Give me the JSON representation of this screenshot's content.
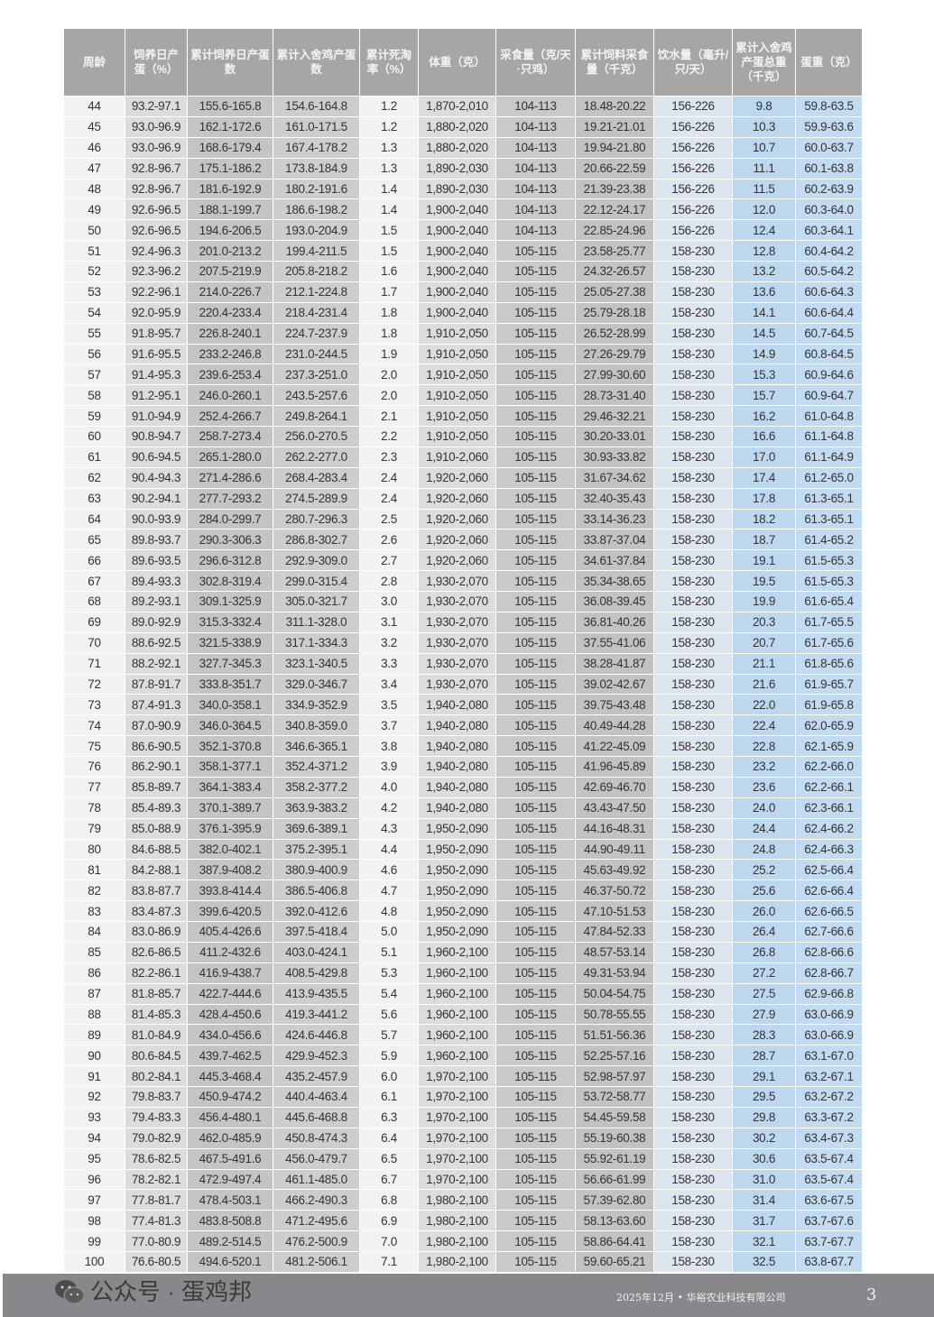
{
  "table": {
    "headers": [
      "周龄",
      "饲养日产蛋（%）",
      "累计饲养日产蛋数",
      "累计入舍鸡产蛋数",
      "累计死淘率（%）",
      "体重（克）",
      "采食量（克/天·只鸡）",
      "累计饲料采食量（千克）",
      "饮水量（毫升/只/天）",
      "累计入舍鸡产蛋总重（千克）",
      "蛋重（克）"
    ],
    "rows": [
      [
        "44",
        "93.2-97.1",
        "155.6-165.8",
        "154.6-164.8",
        "1.2",
        "1,870-2,010",
        "104-113",
        "18.48-20.22",
        "156-226",
        "9.8",
        "59.8-63.5"
      ],
      [
        "45",
        "93.0-96.9",
        "162.1-172.6",
        "161.0-171.5",
        "1.2",
        "1,880-2,020",
        "104-113",
        "19.21-21.01",
        "156-226",
        "10.3",
        "59.9-63.6"
      ],
      [
        "46",
        "93.0-96.9",
        "168.6-179.4",
        "167.4-178.2",
        "1.3",
        "1,880-2,020",
        "104-113",
        "19.94-21.80",
        "156-226",
        "10.7",
        "60.0-63.7"
      ],
      [
        "47",
        "92.8-96.7",
        "175.1-186.2",
        "173.8-184.9",
        "1.3",
        "1,890-2,030",
        "104-113",
        "20.66-22.59",
        "156-226",
        "11.1",
        "60.1-63.8"
      ],
      [
        "48",
        "92.8-96.7",
        "181.6-192.9",
        "180.2-191.6",
        "1.4",
        "1,890-2,030",
        "104-113",
        "21.39-23.38",
        "156-226",
        "11.5",
        "60.2-63.9"
      ],
      [
        "49",
        "92.6-96.5",
        "188.1-199.7",
        "186.6-198.2",
        "1.4",
        "1,900-2,040",
        "104-113",
        "22.12-24.17",
        "156-226",
        "12.0",
        "60.3-64.0"
      ],
      [
        "50",
        "92.6-96.5",
        "194.6-206.5",
        "193.0-204.9",
        "1.5",
        "1,900-2,040",
        "104-113",
        "22.85-24.96",
        "156-226",
        "12.4",
        "60.3-64.1"
      ],
      [
        "51",
        "92.4-96.3",
        "201.0-213.2",
        "199.4-211.5",
        "1.5",
        "1,900-2,040",
        "105-115",
        "23.58-25.77",
        "158-230",
        "12.8",
        "60.4-64.2"
      ],
      [
        "52",
        "92.3-96.2",
        "207.5-219.9",
        "205.8-218.2",
        "1.6",
        "1,900-2,040",
        "105-115",
        "24.32-26.57",
        "158-230",
        "13.2",
        "60.5-64.2"
      ],
      [
        "53",
        "92.2-96.1",
        "214.0-226.7",
        "212.1-224.8",
        "1.7",
        "1,900-2,040",
        "105-115",
        "25.05-27.38",
        "158-230",
        "13.6",
        "60.6-64.3"
      ],
      [
        "54",
        "92.0-95.9",
        "220.4-233.4",
        "218.4-231.4",
        "1.8",
        "1,900-2,040",
        "105-115",
        "25.79-28.18",
        "158-230",
        "14.1",
        "60.6-64.4"
      ],
      [
        "55",
        "91.8-95.7",
        "226.8-240.1",
        "224.7-237.9",
        "1.8",
        "1,910-2,050",
        "105-115",
        "26.52-28.99",
        "158-230",
        "14.5",
        "60.7-64.5"
      ],
      [
        "56",
        "91.6-95.5",
        "233.2-246.8",
        "231.0-244.5",
        "1.9",
        "1,910-2,050",
        "105-115",
        "27.26-29.79",
        "158-230",
        "14.9",
        "60.8-64.5"
      ],
      [
        "57",
        "91.4-95.3",
        "239.6-253.4",
        "237.3-251.0",
        "2.0",
        "1,910-2,050",
        "105-115",
        "27.99-30.60",
        "158-230",
        "15.3",
        "60.9-64.6"
      ],
      [
        "58",
        "91.2-95.1",
        "246.0-260.1",
        "243.5-257.6",
        "2.0",
        "1,910-2,050",
        "105-115",
        "28.73-31.40",
        "158-230",
        "15.7",
        "60.9-64.7"
      ],
      [
        "59",
        "91.0-94.9",
        "252.4-266.7",
        "249.8-264.1",
        "2.1",
        "1,910-2,050",
        "105-115",
        "29.46-32.21",
        "158-230",
        "16.2",
        "61.0-64.8"
      ],
      [
        "60",
        "90.8-94.7",
        "258.7-273.4",
        "256.0-270.5",
        "2.2",
        "1,910-2,050",
        "105-115",
        "30.20-33.01",
        "158-230",
        "16.6",
        "61.1-64.8"
      ],
      [
        "61",
        "90.6-94.5",
        "265.1-280.0",
        "262.2-277.0",
        "2.3",
        "1,910-2,060",
        "105-115",
        "30.93-33.82",
        "158-230",
        "17.0",
        "61.1-64.9"
      ],
      [
        "62",
        "90.4-94.3",
        "271.4-286.6",
        "268.4-283.4",
        "2.4",
        "1,920-2,060",
        "105-115",
        "31.67-34.62",
        "158-230",
        "17.4",
        "61.2-65.0"
      ],
      [
        "63",
        "90.2-94.1",
        "277.7-293.2",
        "274.5-289.9",
        "2.4",
        "1,920-2,060",
        "105-115",
        "32.40-35.43",
        "158-230",
        "17.8",
        "61.3-65.1"
      ],
      [
        "64",
        "90.0-93.9",
        "284.0-299.7",
        "280.7-296.3",
        "2.5",
        "1,920-2,060",
        "105-115",
        "33.14-36.23",
        "158-230",
        "18.2",
        "61.3-65.1"
      ],
      [
        "65",
        "89.8-93.7",
        "290.3-306.3",
        "286.8-302.7",
        "2.6",
        "1,920-2,060",
        "105-115",
        "33.87-37.04",
        "158-230",
        "18.7",
        "61.4-65.2"
      ],
      [
        "66",
        "89.6-93.5",
        "296.6-312.8",
        "292.9-309.0",
        "2.7",
        "1,920-2,060",
        "105-115",
        "34.61-37.84",
        "158-230",
        "19.1",
        "61.5-65.3"
      ],
      [
        "67",
        "89.4-93.3",
        "302.8-319.4",
        "299.0-315.4",
        "2.8",
        "1,930-2,070",
        "105-115",
        "35.34-38.65",
        "158-230",
        "19.5",
        "61.5-65.3"
      ],
      [
        "68",
        "89.2-93.1",
        "309.1-325.9",
        "305.0-321.7",
        "3.0",
        "1,930-2,070",
        "105-115",
        "36.08-39.45",
        "158-230",
        "19.9",
        "61.6-65.4"
      ],
      [
        "69",
        "89.0-92.9",
        "315.3-332.4",
        "311.1-328.0",
        "3.1",
        "1,930-2,070",
        "105-115",
        "36.81-40.26",
        "158-230",
        "20.3",
        "61.7-65.5"
      ],
      [
        "70",
        "88.6-92.5",
        "321.5-338.9",
        "317.1-334.3",
        "3.2",
        "1,930-2,070",
        "105-115",
        "37.55-41.06",
        "158-230",
        "20.7",
        "61.7-65.6"
      ],
      [
        "71",
        "88.2-92.1",
        "327.7-345.3",
        "323.1-340.5",
        "3.3",
        "1,930-2,070",
        "105-115",
        "38.28-41.87",
        "158-230",
        "21.1",
        "61.8-65.6"
      ],
      [
        "72",
        "87.8-91.7",
        "333.8-351.7",
        "329.0-346.7",
        "3.4",
        "1,930-2,070",
        "105-115",
        "39.02-42.67",
        "158-230",
        "21.6",
        "61.9-65.7"
      ],
      [
        "73",
        "87.4-91.3",
        "340.0-358.1",
        "334.9-352.9",
        "3.5",
        "1,940-2,080",
        "105-115",
        "39.75-43.48",
        "158-230",
        "22.0",
        "61.9-65.8"
      ],
      [
        "74",
        "87.0-90.9",
        "346.0-364.5",
        "340.8-359.0",
        "3.7",
        "1,940-2,080",
        "105-115",
        "40.49-44.28",
        "158-230",
        "22.4",
        "62.0-65.9"
      ],
      [
        "75",
        "86.6-90.5",
        "352.1-370.8",
        "346.6-365.1",
        "3.8",
        "1,940-2,080",
        "105-115",
        "41.22-45.09",
        "158-230",
        "22.8",
        "62.1-65.9"
      ],
      [
        "76",
        "86.2-90.1",
        "358.1-377.1",
        "352.4-371.2",
        "3.9",
        "1,940-2,080",
        "105-115",
        "41.96-45.89",
        "158-230",
        "23.2",
        "62.2-66.0"
      ],
      [
        "77",
        "85.8-89.7",
        "364.1-383.4",
        "358.2-377.2",
        "4.0",
        "1,940-2,080",
        "105-115",
        "42.69-46.70",
        "158-230",
        "23.6",
        "62.2-66.1"
      ],
      [
        "78",
        "85.4-89.3",
        "370.1-389.7",
        "363.9-383.2",
        "4.2",
        "1,940-2,080",
        "105-115",
        "43.43-47.50",
        "158-230",
        "24.0",
        "62.3-66.1"
      ],
      [
        "79",
        "85.0-88.9",
        "376.1-395.9",
        "369.6-389.1",
        "4.3",
        "1,950-2,090",
        "105-115",
        "44.16-48.31",
        "158-230",
        "24.4",
        "62.4-66.2"
      ],
      [
        "80",
        "84.6-88.5",
        "382.0-402.1",
        "375.2-395.1",
        "4.4",
        "1,950-2,090",
        "105-115",
        "44.90-49.11",
        "158-230",
        "24.8",
        "62.4-66.3"
      ],
      [
        "81",
        "84.2-88.1",
        "387.9-408.2",
        "380.9-400.9",
        "4.6",
        "1,950-2,090",
        "105-115",
        "45.63-49.92",
        "158-230",
        "25.2",
        "62.5-66.4"
      ],
      [
        "82",
        "83.8-87.7",
        "393.8-414.4",
        "386.5-406.8",
        "4.7",
        "1,950-2,090",
        "105-115",
        "46.37-50.72",
        "158-230",
        "25.6",
        "62.6-66.4"
      ],
      [
        "83",
        "83.4-87.3",
        "399.6-420.5",
        "392.0-412.6",
        "4.8",
        "1,950-2,090",
        "105-115",
        "47.10-51.53",
        "158-230",
        "26.0",
        "62.6-66.5"
      ],
      [
        "84",
        "83.0-86.9",
        "405.4-426.6",
        "397.5-418.4",
        "5.0",
        "1,950-2,090",
        "105-115",
        "47.84-52.33",
        "158-230",
        "26.4",
        "62.7-66.6"
      ],
      [
        "85",
        "82.6-86.5",
        "411.2-432.6",
        "403.0-424.1",
        "5.1",
        "1,960-2,100",
        "105-115",
        "48.57-53.14",
        "158-230",
        "26.8",
        "62.8-66.6"
      ],
      [
        "86",
        "82.2-86.1",
        "416.9-438.7",
        "408.5-429.8",
        "5.3",
        "1,960-2,100",
        "105-115",
        "49.31-53.94",
        "158-230",
        "27.2",
        "62.8-66.7"
      ],
      [
        "87",
        "81.8-85.7",
        "422.7-444.6",
        "413.9-435.5",
        "5.4",
        "1,960-2,100",
        "105-115",
        "50.04-54.75",
        "158-230",
        "27.5",
        "62.9-66.8"
      ],
      [
        "88",
        "81.4-85.3",
        "428.4-450.6",
        "419.3-441.2",
        "5.6",
        "1,960-2,100",
        "105-115",
        "50.78-55.55",
        "158-230",
        "27.9",
        "63.0-66.9"
      ],
      [
        "89",
        "81.0-84.9",
        "434.0-456.6",
        "424.6-446.8",
        "5.7",
        "1,960-2,100",
        "105-115",
        "51.51-56.36",
        "158-230",
        "28.3",
        "63.0-66.9"
      ],
      [
        "90",
        "80.6-84.5",
        "439.7-462.5",
        "429.9-452.3",
        "5.9",
        "1,960-2,100",
        "105-115",
        "52.25-57.16",
        "158-230",
        "28.7",
        "63.1-67.0"
      ],
      [
        "91",
        "80.2-84.1",
        "445.3-468.4",
        "435.2-457.9",
        "6.0",
        "1,970-2,100",
        "105-115",
        "52.98-57.97",
        "158-230",
        "29.1",
        "63.2-67.1"
      ],
      [
        "92",
        "79.8-83.7",
        "450.9-474.2",
        "440.4-463.4",
        "6.1",
        "1,970-2,100",
        "105-115",
        "53.72-58.77",
        "158-230",
        "29.5",
        "63.2-67.2"
      ],
      [
        "93",
        "79.4-83.3",
        "456.4-480.1",
        "445.6-468.8",
        "6.3",
        "1,970-2,100",
        "105-115",
        "54.45-59.58",
        "158-230",
        "29.8",
        "63.3-67.2"
      ],
      [
        "94",
        "79.0-82.9",
        "462.0-485.9",
        "450.8-474.3",
        "6.4",
        "1,970-2,100",
        "105-115",
        "55.19-60.38",
        "158-230",
        "30.2",
        "63.4-67.3"
      ],
      [
        "95",
        "78.6-82.5",
        "467.5-491.6",
        "456.0-479.7",
        "6.5",
        "1,970-2,100",
        "105-115",
        "55.92-61.19",
        "158-230",
        "30.6",
        "63.5-67.4"
      ],
      [
        "96",
        "78.2-82.1",
        "472.9-497.4",
        "461.1-485.0",
        "6.7",
        "1,970-2,100",
        "105-115",
        "56.66-61.99",
        "158-230",
        "31.0",
        "63.5-67.4"
      ],
      [
        "97",
        "77.8-81.7",
        "478.4-503.1",
        "466.2-490.3",
        "6.8",
        "1,980-2,100",
        "105-115",
        "57.39-62.80",
        "158-230",
        "31.4",
        "63.6-67.5"
      ],
      [
        "98",
        "77.4-81.3",
        "483.8-508.8",
        "471.2-495.6",
        "6.9",
        "1,980-2,100",
        "105-115",
        "58.13-63.60",
        "158-230",
        "31.7",
        "63.7-67.6"
      ],
      [
        "99",
        "77.0-80.9",
        "489.2-514.5",
        "476.2-500.9",
        "7.0",
        "1,980-2,100",
        "105-115",
        "58.86-64.41",
        "158-230",
        "32.1",
        "63.7-67.7"
      ],
      [
        "100",
        "76.6-80.5",
        "494.6-520.1",
        "481.2-506.1",
        "7.1",
        "1,980-2,100",
        "105-115",
        "59.60-65.21",
        "158-230",
        "32.5",
        "63.8-67.7"
      ]
    ]
  },
  "footer": {
    "date_company": "2025年12月 • 华裕农业科技有限公司",
    "page_number": "3"
  },
  "watermark": {
    "text": "公众号 · 蛋鸡邦",
    "icon": "wechat-icon"
  },
  "colors": {
    "header": "#a8a5a5",
    "footer": "#88888c",
    "blue_columns": "#bdd7ee"
  }
}
